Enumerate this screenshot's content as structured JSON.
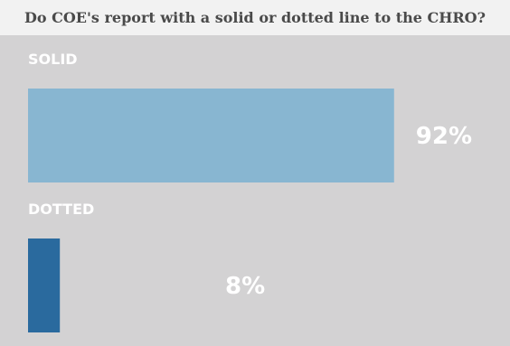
{
  "chart_data": {
    "type": "bar",
    "orientation": "horizontal",
    "title": "Do COE's report with a solid or dotted line to the CHRO?",
    "categories": [
      "SOLID",
      "DOTTED"
    ],
    "values": [
      92,
      8
    ],
    "value_labels": [
      "92%",
      "8%"
    ],
    "xlim": [
      0,
      100
    ],
    "grid": false,
    "legend": "none",
    "colors": [
      "#88b6d1",
      "#2a6a9e"
    ],
    "background": "#d3d2d3"
  }
}
